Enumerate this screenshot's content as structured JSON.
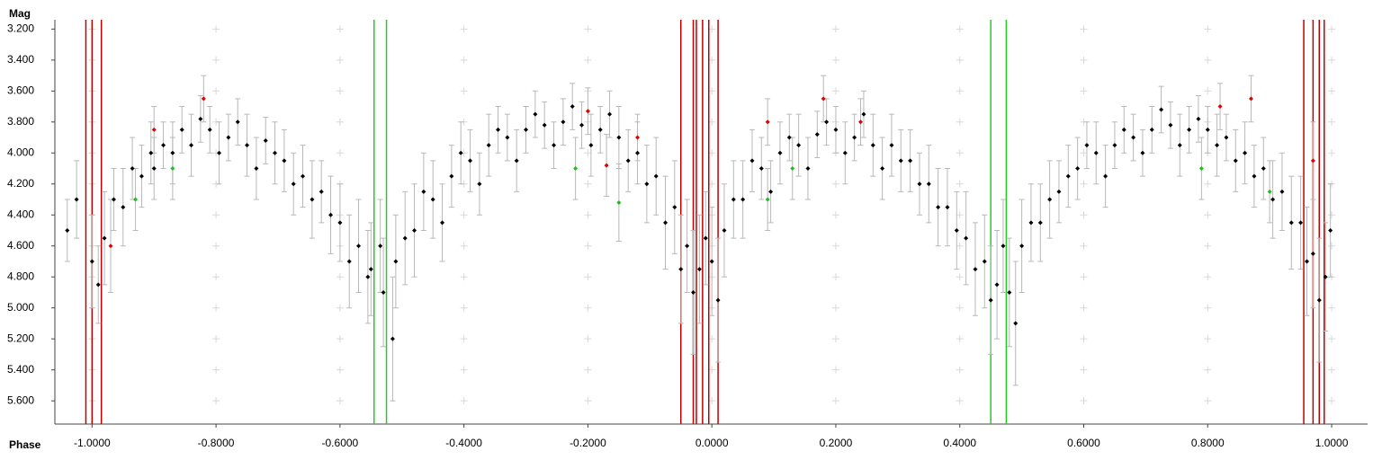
{
  "chart_data": {
    "type": "scatter",
    "y_label": "Mag",
    "x_label": "Phase",
    "xlim": [
      -1.06,
      1.058
    ],
    "ylim": [
      3.14,
      5.75
    ],
    "y_inverted": true,
    "grid": true,
    "xticks": [
      {
        "value": -1,
        "label": "-1.0000"
      },
      {
        "value": -0.8,
        "label": "-0.8000"
      },
      {
        "value": -0.6,
        "label": "-0.6000"
      },
      {
        "value": -0.4,
        "label": "-0.4000"
      },
      {
        "value": -0.2,
        "label": "-0.2000"
      },
      {
        "value": 0,
        "label": "0.0000"
      },
      {
        "value": 0.2,
        "label": "0.2000"
      },
      {
        "value": 0.4,
        "label": "0.4000"
      },
      {
        "value": 0.6,
        "label": "0.6000"
      },
      {
        "value": 0.8,
        "label": "0.8000"
      },
      {
        "value": 1,
        "label": "1.0000"
      }
    ],
    "yticks": [
      {
        "value": 3.2,
        "label": "3.200"
      },
      {
        "value": 3.4,
        "label": "3.400"
      },
      {
        "value": 3.6,
        "label": "3.600"
      },
      {
        "value": 3.8,
        "label": "3.800"
      },
      {
        "value": 4,
        "label": "4.000"
      },
      {
        "value": 4.2,
        "label": "4.200"
      },
      {
        "value": 4.4,
        "label": "4.400"
      },
      {
        "value": 4.6,
        "label": "4.600"
      },
      {
        "value": 4.8,
        "label": "4.800"
      },
      {
        "value": 5,
        "label": "5.000"
      },
      {
        "value": 5.2,
        "label": "5.200"
      },
      {
        "value": 5.4,
        "label": "5.400"
      },
      {
        "value": 5.6,
        "label": "5.600"
      }
    ],
    "vlines": [
      {
        "color": "#c00000",
        "x": [
          -1.01,
          -1.0,
          -0.985,
          -0.05,
          -0.03,
          -0.025,
          -0.015,
          -0.005,
          0.01,
          0.955,
          0.97,
          0.98,
          0.988
        ]
      },
      {
        "color": "#22cc22",
        "x": [
          -0.545,
          -0.525,
          0.45,
          0.475
        ]
      }
    ],
    "series": [
      {
        "color": "#000000",
        "x": [
          -1.04,
          -1.025,
          -1.0,
          -0.99,
          -0.98,
          -0.965,
          -0.95,
          -0.935,
          -0.92,
          -0.905,
          -0.9,
          -0.885,
          -0.87,
          -0.855,
          -0.84,
          -0.825,
          -0.81,
          -0.795,
          -0.78,
          -0.765,
          -0.75,
          -0.735,
          -0.72,
          -0.705,
          -0.69,
          -0.675,
          -0.66,
          -0.645,
          -0.63,
          -0.615,
          -0.6,
          -0.585,
          -0.57,
          -0.555,
          -0.55,
          -0.535,
          -0.53,
          -0.515,
          -0.51,
          -0.495,
          -0.48,
          -0.465,
          -0.45,
          -0.435,
          -0.42,
          -0.405,
          -0.39,
          -0.375,
          -0.36,
          -0.345,
          -0.33,
          -0.315,
          -0.3,
          -0.285,
          -0.27,
          -0.255,
          -0.24,
          -0.225,
          -0.21,
          -0.195,
          -0.18,
          -0.165,
          -0.15,
          -0.135,
          -0.12,
          -0.105,
          -0.09,
          -0.075,
          -0.06,
          -0.05,
          -0.04,
          -0.03,
          -0.02,
          -0.01,
          0.0,
          0.01,
          0.02,
          0.035,
          0.05,
          0.065,
          0.08,
          0.095,
          0.11,
          0.125,
          0.14,
          0.155,
          0.17,
          0.185,
          0.2,
          0.215,
          0.23,
          0.245,
          0.26,
          0.275,
          0.29,
          0.305,
          0.32,
          0.335,
          0.35,
          0.365,
          0.38,
          0.395,
          0.41,
          0.425,
          0.44,
          0.45,
          0.46,
          0.47,
          0.48,
          0.49,
          0.5,
          0.515,
          0.53,
          0.545,
          0.56,
          0.575,
          0.59,
          0.605,
          0.62,
          0.635,
          0.65,
          0.665,
          0.68,
          0.695,
          0.71,
          0.725,
          0.74,
          0.755,
          0.77,
          0.785,
          0.8,
          0.815,
          0.83,
          0.845,
          0.86,
          0.875,
          0.89,
          0.905,
          0.92,
          0.935,
          0.95,
          0.96,
          0.97,
          0.98,
          0.99,
          0.998
        ],
        "y": [
          4.5,
          4.3,
          4.7,
          4.85,
          4.55,
          4.3,
          4.35,
          4.1,
          4.15,
          4.0,
          4.1,
          3.95,
          4.0,
          3.85,
          3.95,
          3.78,
          3.85,
          4.0,
          3.9,
          3.8,
          3.95,
          4.1,
          3.92,
          4.0,
          4.05,
          4.2,
          4.15,
          4.3,
          4.25,
          4.4,
          4.45,
          4.7,
          4.6,
          4.8,
          4.75,
          4.6,
          4.9,
          5.2,
          4.7,
          4.55,
          4.5,
          4.25,
          4.3,
          4.45,
          4.15,
          4.0,
          4.05,
          4.2,
          3.95,
          3.85,
          3.9,
          4.05,
          3.85,
          3.75,
          3.82,
          3.95,
          3.8,
          3.7,
          3.82,
          3.95,
          3.85,
          3.75,
          3.9,
          4.05,
          4.0,
          4.2,
          4.15,
          4.45,
          4.35,
          4.75,
          4.6,
          4.9,
          4.75,
          4.55,
          4.7,
          4.95,
          4.5,
          4.3,
          4.3,
          4.05,
          4.1,
          4.25,
          4.0,
          3.9,
          3.95,
          4.1,
          3.88,
          3.8,
          3.85,
          4.0,
          3.9,
          3.75,
          3.95,
          4.1,
          3.95,
          4.05,
          4.05,
          4.2,
          4.2,
          4.35,
          4.35,
          4.5,
          4.55,
          4.75,
          4.7,
          4.95,
          4.85,
          4.6,
          4.9,
          5.1,
          4.6,
          4.45,
          4.45,
          4.3,
          4.25,
          4.15,
          4.1,
          3.95,
          4.0,
          4.15,
          3.95,
          3.85,
          3.9,
          4.0,
          3.85,
          3.72,
          3.82,
          3.95,
          3.85,
          3.78,
          3.85,
          3.95,
          3.9,
          4.05,
          4.0,
          4.15,
          4.1,
          4.3,
          4.25,
          4.45,
          4.45,
          4.7,
          4.65,
          4.95,
          4.8,
          4.5
        ],
        "errors": [
          0.2,
          0.25,
          0.3,
          0.25,
          0.3,
          0.2,
          0.25,
          0.2,
          0.2,
          0.2,
          0.2,
          0.15,
          0.2,
          0.15,
          0.2,
          0.15,
          0.15,
          0.2,
          0.15,
          0.15,
          0.2,
          0.2,
          0.15,
          0.2,
          0.2,
          0.2,
          0.2,
          0.25,
          0.2,
          0.25,
          0.25,
          0.3,
          0.3,
          0.3,
          0.3,
          0.3,
          0.35,
          0.4,
          0.3,
          0.3,
          0.3,
          0.25,
          0.25,
          0.25,
          0.2,
          0.2,
          0.2,
          0.2,
          0.2,
          0.15,
          0.15,
          0.2,
          0.15,
          0.15,
          0.15,
          0.15,
          0.15,
          0.15,
          0.15,
          0.2,
          0.15,
          0.15,
          0.2,
          0.2,
          0.2,
          0.25,
          0.25,
          0.3,
          0.3,
          0.35,
          0.3,
          0.4,
          0.35,
          0.3,
          0.35,
          0.4,
          0.3,
          0.25,
          0.25,
          0.2,
          0.2,
          0.2,
          0.2,
          0.15,
          0.2,
          0.2,
          0.15,
          0.15,
          0.15,
          0.2,
          0.15,
          0.15,
          0.2,
          0.2,
          0.2,
          0.2,
          0.2,
          0.2,
          0.25,
          0.25,
          0.25,
          0.25,
          0.3,
          0.3,
          0.3,
          0.35,
          0.35,
          0.3,
          0.35,
          0.4,
          0.3,
          0.25,
          0.25,
          0.25,
          0.2,
          0.2,
          0.2,
          0.15,
          0.2,
          0.2,
          0.15,
          0.15,
          0.15,
          0.15,
          0.15,
          0.15,
          0.15,
          0.2,
          0.15,
          0.15,
          0.15,
          0.2,
          0.15,
          0.2,
          0.2,
          0.2,
          0.2,
          0.25,
          0.25,
          0.3,
          0.3,
          0.35,
          0.35,
          0.4,
          0.35,
          0.3
        ]
      },
      {
        "color": "#e00000",
        "x": [
          -0.97,
          -0.9,
          -0.82,
          -0.2,
          -0.17,
          -0.12,
          0.09,
          0.18,
          0.24,
          0.82,
          0.87,
          0.97
        ],
        "y": [
          4.6,
          3.85,
          3.65,
          3.73,
          4.08,
          3.9,
          3.8,
          3.65,
          3.8,
          3.7,
          3.65,
          4.05
        ],
        "errors": [
          0.3,
          0.15,
          0.15,
          0.15,
          0.2,
          0.15,
          0.15,
          0.15,
          0.15,
          0.15,
          0.15,
          0.25
        ]
      },
      {
        "color": "#22bb22",
        "x": [
          -0.93,
          -0.87,
          -0.22,
          -0.15,
          0.09,
          0.13,
          0.79,
          0.9
        ],
        "y": [
          4.3,
          4.1,
          4.1,
          4.32,
          4.3,
          4.1,
          4.1,
          4.25
        ],
        "errors": [
          0.2,
          0.2,
          0.2,
          0.25,
          0.2,
          0.2,
          0.2,
          0.2
        ]
      }
    ]
  }
}
